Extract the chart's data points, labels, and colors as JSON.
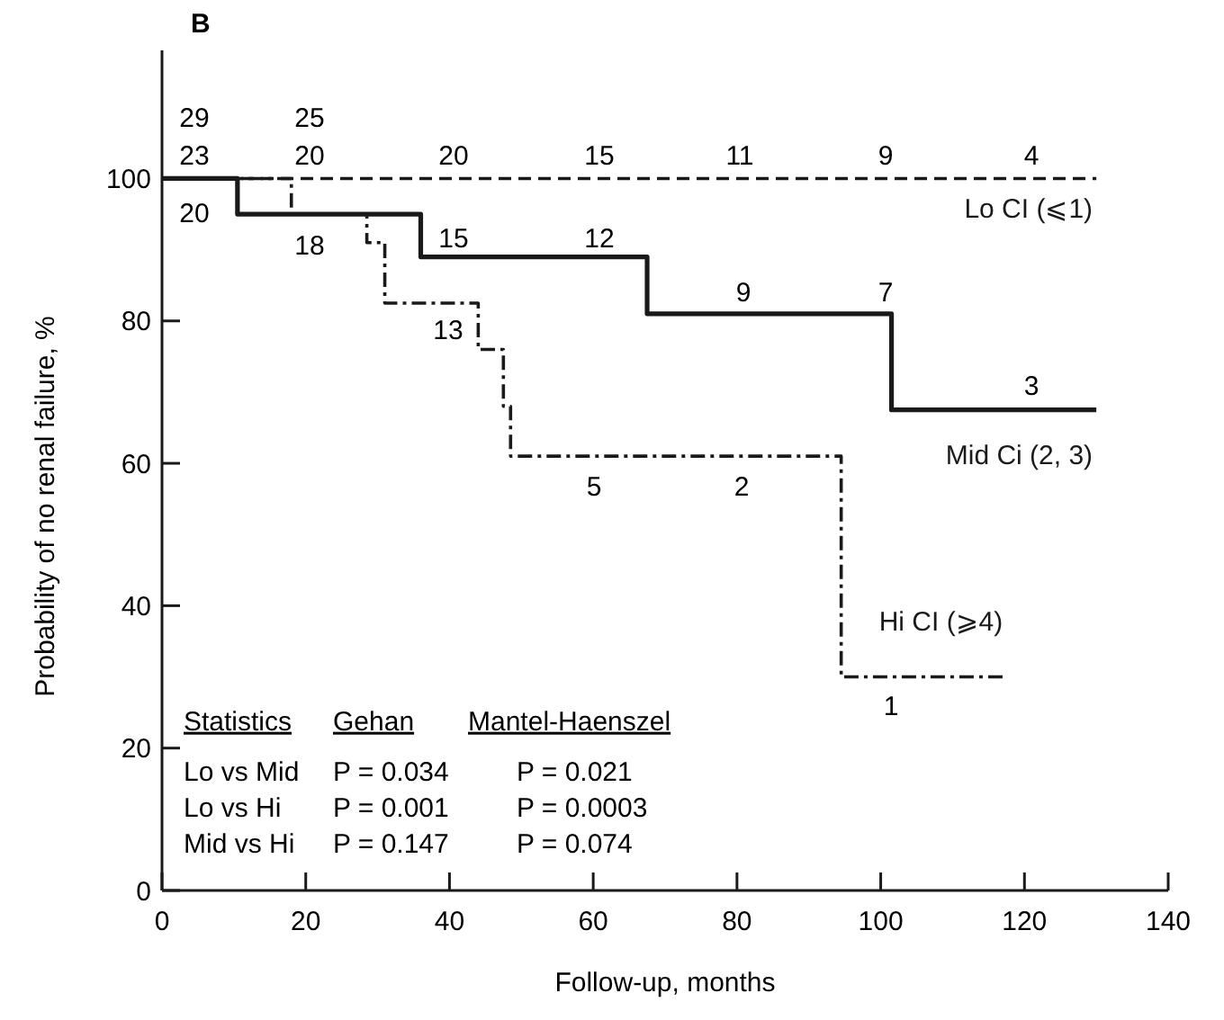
{
  "chart_data": {
    "type": "step",
    "title": "B",
    "xlabel": "Follow-up, months",
    "ylabel": "Probability of no renal failure, %",
    "xlim": [
      0,
      140
    ],
    "xticks": [
      0,
      20,
      40,
      60,
      80,
      100,
      120,
      140
    ],
    "ylim": [
      0,
      118
    ],
    "yticks": [
      0,
      20,
      40,
      60,
      80,
      100
    ],
    "grid": false,
    "series": [
      {
        "name": "Lo CI (⩽1)",
        "color": "#1a1a1a",
        "line_style": "dashed",
        "x": [
          0,
          130
        ],
        "values": [
          100,
          100
        ]
      },
      {
        "name": "Mid Ci (2, 3)",
        "color": "#1a1a1a",
        "line_style": "solid",
        "x": [
          0,
          10.5,
          36,
          67.5,
          101.5,
          130
        ],
        "values": [
          100,
          95,
          89,
          81,
          67.5,
          67.5
        ]
      },
      {
        "name": "Hi CI (⩾4)",
        "color": "#1a1a1a",
        "line_style": "dashdot",
        "x": [
          0,
          18,
          28.5,
          31,
          44,
          47.5,
          48.5,
          94.5,
          117.5
        ],
        "values": [
          100,
          95,
          91,
          82.5,
          76,
          68,
          61,
          30,
          30
        ]
      }
    ],
    "annotations": [
      "29",
      "23",
      "20",
      "25",
      "20",
      "18",
      "20",
      "15",
      "11",
      "9",
      "4",
      "15",
      "12",
      "9",
      "7",
      "3",
      "13",
      "5",
      "2",
      "1",
      "Statistics",
      "Gehan",
      "Mantel-Haenszel",
      "Lo vs Mid",
      "P = 0.034",
      "P = 0.021",
      "Lo vs Hi",
      "P = 0.001",
      "P = 0.0003",
      "Mid vs Hi",
      "P = 0.147",
      "P = 0.074"
    ]
  }
}
